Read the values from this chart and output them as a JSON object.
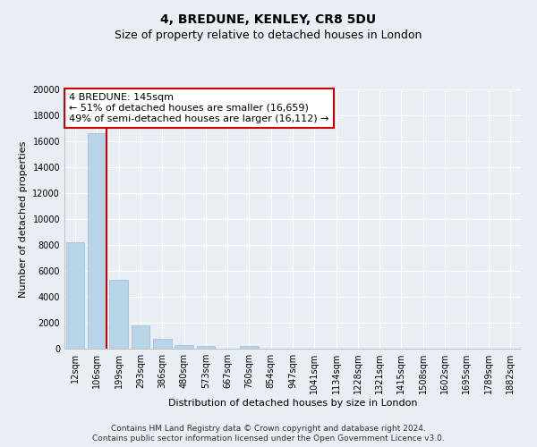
{
  "title": "4, BREDUNE, KENLEY, CR8 5DU",
  "subtitle": "Size of property relative to detached houses in London",
  "xlabel": "Distribution of detached houses by size in London",
  "ylabel": "Number of detached properties",
  "categories": [
    "12sqm",
    "106sqm",
    "199sqm",
    "293sqm",
    "386sqm",
    "480sqm",
    "573sqm",
    "667sqm",
    "760sqm",
    "854sqm",
    "947sqm",
    "1041sqm",
    "1134sqm",
    "1228sqm",
    "1321sqm",
    "1415sqm",
    "1508sqm",
    "1602sqm",
    "1695sqm",
    "1789sqm",
    "1882sqm"
  ],
  "values": [
    8200,
    16600,
    5300,
    1800,
    750,
    300,
    200,
    0,
    200,
    0,
    0,
    0,
    0,
    0,
    0,
    0,
    0,
    0,
    0,
    0,
    0
  ],
  "bar_color": "#b8d4e8",
  "bar_edge_color": "#9bbdd4",
  "vline_color": "#cc0000",
  "ylim": [
    0,
    20000
  ],
  "yticks": [
    0,
    2000,
    4000,
    6000,
    8000,
    10000,
    12000,
    14000,
    16000,
    18000,
    20000
  ],
  "ytick_labels": [
    "0",
    "2000",
    "4000",
    "6000",
    "8000",
    "10000",
    "12000",
    "14000",
    "16000",
    "18000",
    "20000"
  ],
  "annotation_line1": "4 BREDUNE: 145sqm",
  "annotation_line2": "← 51% of detached houses are smaller (16,659)",
  "annotation_line3": "49% of semi-detached houses are larger (16,112) →",
  "annotation_box_color": "#ffffff",
  "annotation_box_edge_color": "#cc0000",
  "footnote1": "Contains HM Land Registry data © Crown copyright and database right 2024.",
  "footnote2": "Contains public sector information licensed under the Open Government Licence v3.0.",
  "background_color": "#e8eef4",
  "grid_color": "#ffffff",
  "title_fontsize": 10,
  "subtitle_fontsize": 9,
  "axis_label_fontsize": 8,
  "tick_fontsize": 7,
  "annotation_fontsize": 8,
  "footnote_fontsize": 6.5
}
